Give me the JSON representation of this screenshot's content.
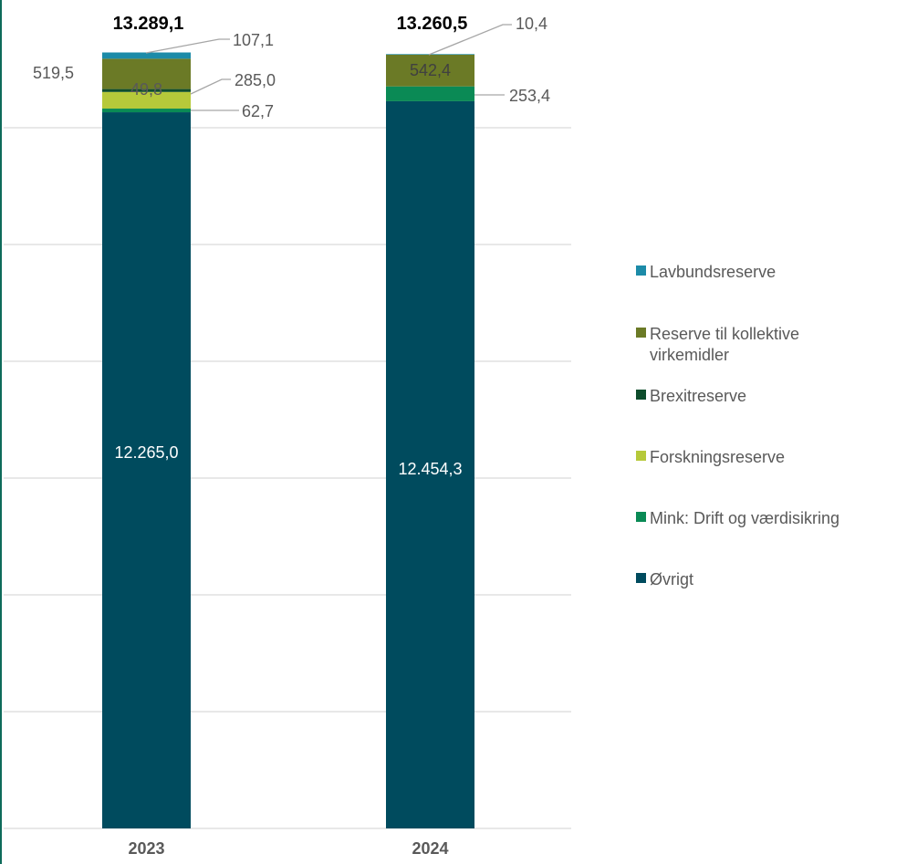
{
  "chart_data": {
    "type": "bar",
    "stacked": true,
    "categories": [
      "2023",
      "2024"
    ],
    "totals": [
      "13.289,1",
      "13.260,5"
    ],
    "series": [
      {
        "name": "Øvrigt",
        "color": "#004b5e",
        "values": [
          12265.0,
          12454.3
        ],
        "labels": [
          "12.265,0",
          "12.454,3"
        ]
      },
      {
        "name": "Mink: Drift og værdisikring",
        "color": "#0a8a55",
        "values": [
          62.7,
          253.4
        ],
        "labels": [
          "62,7",
          "253,4"
        ]
      },
      {
        "name": "Forskningsreserve",
        "color": "#b6c93a",
        "values": [
          285.0,
          0
        ],
        "labels": [
          "285,0",
          ""
        ]
      },
      {
        "name": "Brexitreserve",
        "color": "#0e4d2c",
        "values": [
          49.8,
          0
        ],
        "labels": [
          "49,8",
          ""
        ]
      },
      {
        "name": "Reserve til kollektive virkemidler",
        "color": "#6b7a26",
        "values": [
          519.5,
          542.4
        ],
        "labels": [
          "519,5",
          "542,4"
        ]
      },
      {
        "name": "Lavbundsreserve",
        "color": "#1c8ba8",
        "values": [
          107.1,
          10.4
        ],
        "labels": [
          "107,1",
          "10,4"
        ]
      }
    ],
    "legend_order": [
      "Lavbundsreserve",
      "Reserve til kollektive virkemidler",
      "Brexitreserve",
      "Forskningsreserve",
      "Mink: Drift og værdisikring",
      "Øvrigt"
    ],
    "legend_position": "right",
    "ylim": [
      0,
      14000
    ],
    "grid": true,
    "title": "",
    "xlabel": "",
    "ylabel": ""
  }
}
